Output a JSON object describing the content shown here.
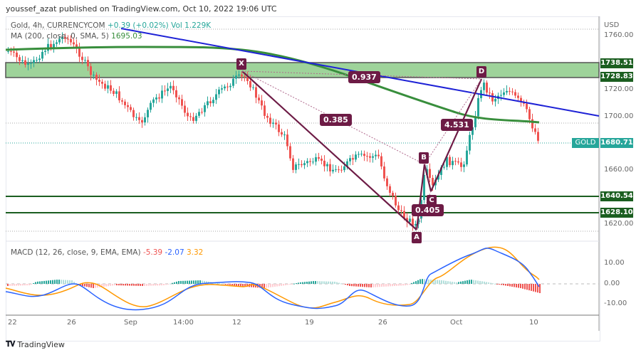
{
  "header": {
    "publisher_line": "youssef_azat published on TradingView.com, Oct 10, 2022 19:06 UTC"
  },
  "legend": {
    "symbol": "Gold, 4h, CURRENCYCOM",
    "change": "+0.39 (+0.02%)",
    "volume": "Vol 1.229K",
    "ma_label": "MA (200, close, 0, SMA, 5)",
    "ma_value": "1695.03",
    "macd_label": "MACD (12, 26, close, 9, EMA, EMA)",
    "macd_hist": "-5.39",
    "macd_line": "-2.07",
    "macd_signal": "3.32"
  },
  "price_axis": {
    "currency": "USD",
    "ticks": [
      "1760.00",
      "1720.00",
      "1700.00",
      "1660.00",
      "1620.00"
    ],
    "tags": {
      "zone_top": "1738.51",
      "zone_bottom": "1728.83",
      "current": "1680.71",
      "support_1": "1640.54",
      "support_2": "1628.10"
    },
    "symbol_tag": "GOLD"
  },
  "macd_axis": {
    "ticks": [
      "10.00",
      "0.00",
      "-10.00"
    ]
  },
  "time_axis": {
    "ticks": [
      "22",
      "26",
      "Sep",
      "14:00",
      "12",
      "19",
      "26",
      "Oct",
      "10"
    ]
  },
  "pattern": {
    "points": [
      "X",
      "A",
      "B",
      "C",
      "D"
    ],
    "ratios": {
      "xb": "0.937",
      "xa_ab": "0.385",
      "bc": "0.405",
      "cd": "4.531"
    }
  },
  "footer": {
    "brand": "TradingView"
  },
  "chart_data": {
    "type": "candlestick",
    "title": "Gold, 4h, CURRENCYCOM",
    "ylabel": "USD",
    "ylim": [
      1612,
      1768
    ],
    "x_ticks": [
      "22",
      "26",
      "Sep",
      "14:00",
      "12",
      "19",
      "26",
      "Oct",
      "10"
    ],
    "y_ticks": [
      1620,
      1660,
      1700,
      1720,
      1760
    ],
    "current_price": 1680.71,
    "indicators": {
      "MA200_SMA": 1695.03,
      "MACD": {
        "histogram": -5.39,
        "macd": -2.07,
        "signal": 3.32,
        "ylim": [
          -15,
          17
        ]
      }
    },
    "levels": {
      "resistance_zone": [
        1728.83,
        1738.51
      ],
      "support_lines": [
        1640.54,
        1628.1
      ]
    },
    "harmonic_pattern": {
      "X": {
        "approx_date": "Sep 13",
        "price": 1735
      },
      "A": {
        "approx_date": "Sep 28",
        "price": 1615
      },
      "B": {
        "approx_date": "Sep 29",
        "price": 1662
      },
      "C": {
        "approx_date": "Sep 30",
        "price": 1642
      },
      "D": {
        "approx_date": "Oct 4",
        "price": 1729
      },
      "ratios": {
        "XB": 0.937,
        "AB": 0.385,
        "BC": 0.405,
        "CD": 4.531
      }
    },
    "trendline": {
      "from_price": 1762,
      "to_price": 1700,
      "color": "#1e22d6"
    }
  }
}
